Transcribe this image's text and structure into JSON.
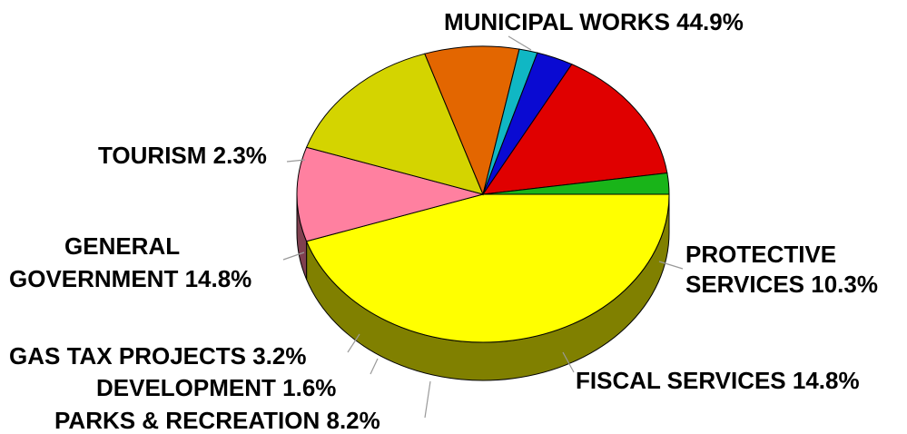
{
  "chart_data": {
    "type": "pie",
    "style": "3d-pie",
    "title": "",
    "slices": [
      {
        "label": "MUNICIPAL WORKS",
        "pct_label": "44.9%",
        "value": 44.9,
        "color": "#ffff00"
      },
      {
        "label": "PROTECTIVE SERVICES",
        "pct_label": "10.3%",
        "value": 10.3,
        "color": "#ff80a0"
      },
      {
        "label": "FISCAL SERVICES",
        "pct_label": "14.8%",
        "value": 14.8,
        "color": "#d4d400"
      },
      {
        "label": "PARKS & RECREATION",
        "pct_label": "8.2%",
        "value": 8.2,
        "color": "#e36600"
      },
      {
        "label": "DEVELOPMENT",
        "pct_label": "1.6%",
        "value": 1.6,
        "color": "#10b7c4"
      },
      {
        "label": "GAS TAX PROJECTS",
        "pct_label": "3.2%",
        "value": 3.2,
        "color": "#0a0ad2"
      },
      {
        "label": "GENERAL GOVERNMENT",
        "pct_label": "14.8%",
        "value": 14.8,
        "color": "#e00000"
      },
      {
        "label": "TOURISM",
        "pct_label": "2.3%",
        "value": 2.3,
        "color": "#19b419"
      }
    ],
    "labels": {
      "municipal": "MUNICIPAL WORKS 44.9%",
      "tourism": "TOURISM 2.3%",
      "general_1": "GENERAL",
      "general_2": "GOVERNMENT 14.8%",
      "protective_1": "PROTECTIVE",
      "protective_2": "SERVICES 10.3%",
      "fiscal": "FISCAL SERVICES 14.8%",
      "gas": "GAS TAX PROJECTS 3.2%",
      "development": "DEVELOPMENT 1.6%",
      "parks": "PARKS & RECREATION 8.2%"
    }
  }
}
